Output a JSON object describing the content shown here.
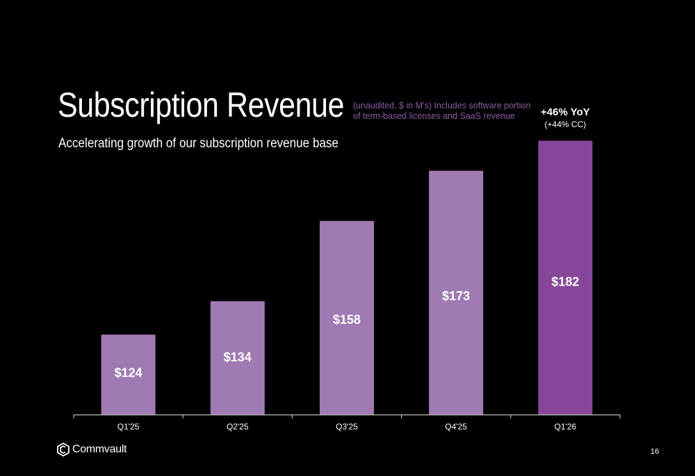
{
  "slide": {
    "title": "Subscription Revenue",
    "note": "(unaudited, $ in M’s) Includes software portion of term-based licenses and SaaS revenue",
    "subtitle": "Accelerating growth of our subscription revenue base",
    "page_number": "16",
    "logo_text": "Commvault"
  },
  "colors": {
    "background": "#000000",
    "bar": "#a07ab3",
    "bar_highlight": "#86479b",
    "note_text": "#8e5aa3",
    "axis": "#bfbfbf"
  },
  "chart_data": {
    "type": "bar",
    "title": "",
    "categories": [
      "Q1'25",
      "Q2'25",
      "Q3'25",
      "Q4'25",
      "Q1'26"
    ],
    "values": [
      124,
      134,
      158,
      173,
      182
    ],
    "data_labels": [
      "$124",
      "$134",
      "$158",
      "$173",
      "$182"
    ],
    "highlight_index": 4,
    "annotation": {
      "main": "+46% YoY",
      "sub": "(+44% CC)",
      "category": "Q1'26"
    },
    "xlabel": "",
    "ylabel": "",
    "ylim": [
      100,
      185
    ],
    "grid": false,
    "legend": "none"
  }
}
